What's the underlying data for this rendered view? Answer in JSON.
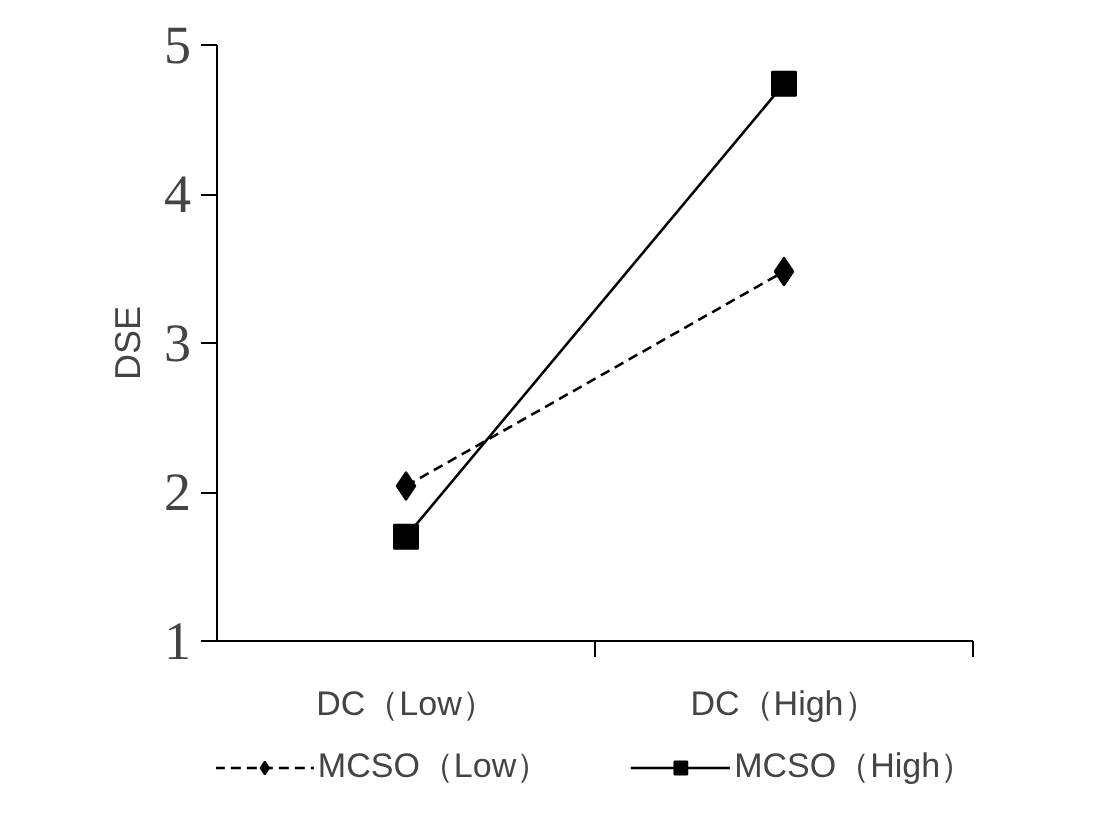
{
  "chart_data": {
    "type": "line",
    "ylabel": "DSE",
    "categories": [
      "DC（Low）",
      "DC（High）"
    ],
    "series": [
      {
        "name": "MCSO（Low）",
        "color": "#000000",
        "marker": "diamond",
        "line_style": "dashed",
        "values": [
          2.04,
          3.48
        ]
      },
      {
        "name": "MCSO（High）",
        "color": "#000000",
        "marker": "square",
        "line_style": "solid",
        "values": [
          1.7,
          4.74
        ]
      }
    ],
    "ylim": [
      1,
      5
    ],
    "yticks": [
      1,
      2,
      3,
      4,
      5
    ],
    "grid": false,
    "legend": "bottom"
  }
}
